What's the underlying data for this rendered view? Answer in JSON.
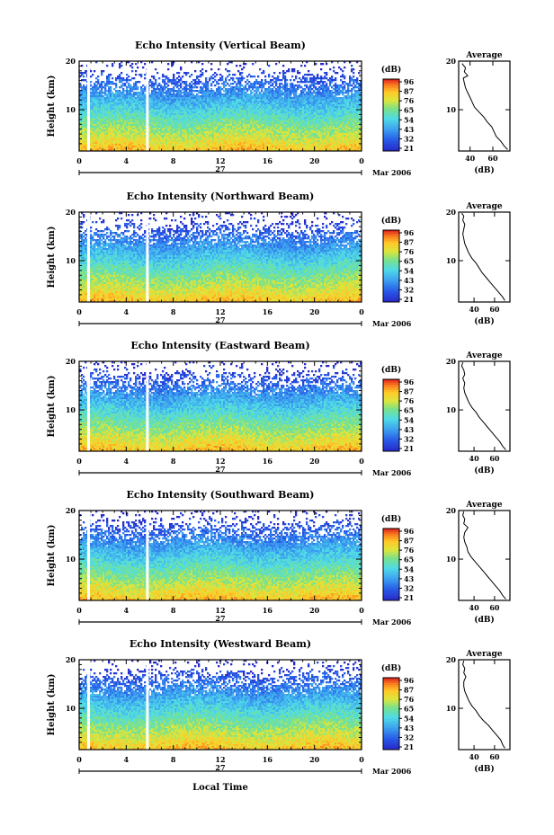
{
  "figure": {
    "x_axis_label": "Local Time",
    "date_label": "Mar 2006",
    "day_label": "27"
  },
  "chart_data": [
    {
      "type": "heatmap",
      "title": "Echo Intensity (Vertical Beam)",
      "ylabel": "Height (km)",
      "xlabel": "Local Time",
      "x_ticks": [
        "0",
        "4",
        "8",
        "12",
        "16",
        "20",
        "0"
      ],
      "y_ticks": [
        "20",
        "10"
      ],
      "xlim": [
        0,
        24
      ],
      "ylim": [
        1.5,
        20
      ],
      "data_gaps_hours": [
        0.8,
        5.8
      ],
      "colorbar": {
        "unit": "(dB)",
        "ticks": [
          "96",
          "87",
          "76",
          "65",
          "54",
          "43",
          "32",
          "21"
        ]
      },
      "average_profile": {
        "title": "Average",
        "xlabel": "(dB)",
        "x_ticks": [
          "40",
          "60"
        ],
        "y_ticks": [
          "20",
          "10"
        ],
        "xlim": [
          30,
          75
        ],
        "values": [
          [
            73,
            1.8
          ],
          [
            70,
            2.5
          ],
          [
            67,
            3.5
          ],
          [
            63,
            4.5
          ],
          [
            61,
            5.5
          ],
          [
            59,
            6.5
          ],
          [
            55,
            7.5
          ],
          [
            52,
            8.5
          ],
          [
            48,
            9.5
          ],
          [
            44,
            10.5
          ],
          [
            42,
            11.5
          ],
          [
            40,
            12.5
          ],
          [
            38,
            13.5
          ],
          [
            36,
            14.5
          ],
          [
            35,
            15.5
          ],
          [
            34,
            16.5
          ],
          [
            38,
            17.0
          ],
          [
            35,
            17.8
          ],
          [
            36,
            18.6
          ],
          [
            33,
            19.5
          ]
        ]
      }
    },
    {
      "type": "heatmap",
      "title": "Echo Intensity (Northward Beam)",
      "ylabel": "Height (km)",
      "xlabel": "Local Time",
      "x_ticks": [
        "0",
        "4",
        "8",
        "12",
        "16",
        "20",
        "0"
      ],
      "y_ticks": [
        "20",
        "10"
      ],
      "xlim": [
        0,
        24
      ],
      "ylim": [
        1.5,
        20
      ],
      "data_gaps_hours": [
        0.8,
        5.8
      ],
      "colorbar": {
        "unit": "(dB)",
        "ticks": [
          "96",
          "87",
          "76",
          "65",
          "54",
          "43",
          "32",
          "21"
        ]
      },
      "average_profile": {
        "title": "Average",
        "xlabel": "(dB)",
        "x_ticks": [
          "40",
          "60"
        ],
        "y_ticks": [
          "20",
          "10"
        ],
        "xlim": [
          25,
          75
        ],
        "values": [
          [
            70,
            1.8
          ],
          [
            68,
            2.5
          ],
          [
            64,
            3.5
          ],
          [
            60,
            4.5
          ],
          [
            56,
            5.5
          ],
          [
            52,
            6.5
          ],
          [
            48,
            7.5
          ],
          [
            45,
            8.5
          ],
          [
            42,
            9.5
          ],
          [
            38,
            10.5
          ],
          [
            35,
            11.5
          ],
          [
            33,
            12.5
          ],
          [
            31,
            13.5
          ],
          [
            30,
            14.5
          ],
          [
            29,
            15.5
          ],
          [
            30,
            16.5
          ],
          [
            31,
            17.5
          ],
          [
            29,
            18.3
          ],
          [
            30,
            19.2
          ],
          [
            28,
            19.8
          ]
        ]
      }
    },
    {
      "type": "heatmap",
      "title": "Echo Intensity (Eastward Beam)",
      "ylabel": "Height (km)",
      "xlabel": "Local Time",
      "x_ticks": [
        "0",
        "4",
        "8",
        "12",
        "16",
        "20",
        "0"
      ],
      "y_ticks": [
        "20",
        "10"
      ],
      "xlim": [
        0,
        24
      ],
      "ylim": [
        1.5,
        20
      ],
      "data_gaps_hours": [
        0.8,
        5.8
      ],
      "colorbar": {
        "unit": "(dB)",
        "ticks": [
          "96",
          "87",
          "76",
          "65",
          "54",
          "43",
          "32",
          "21"
        ]
      },
      "average_profile": {
        "title": "Average",
        "xlabel": "(dB)",
        "x_ticks": [
          "40",
          "60"
        ],
        "y_ticks": [
          "20",
          "10"
        ],
        "xlim": [
          25,
          75
        ],
        "values": [
          [
            71,
            1.8
          ],
          [
            68,
            2.5
          ],
          [
            65,
            3.5
          ],
          [
            61,
            4.5
          ],
          [
            57,
            5.5
          ],
          [
            53,
            6.5
          ],
          [
            49,
            7.5
          ],
          [
            45,
            8.5
          ],
          [
            42,
            9.5
          ],
          [
            38,
            10.5
          ],
          [
            35,
            11.5
          ],
          [
            33,
            12.5
          ],
          [
            31,
            13.5
          ],
          [
            30,
            14.5
          ],
          [
            31,
            15.5
          ],
          [
            29,
            16.5
          ],
          [
            31,
            17.3
          ],
          [
            30,
            18.2
          ],
          [
            28,
            19.0
          ],
          [
            29,
            19.8
          ]
        ]
      }
    },
    {
      "type": "heatmap",
      "title": "Echo Intensity (Southward Beam)",
      "ylabel": "Height (km)",
      "xlabel": "Local Time",
      "x_ticks": [
        "0",
        "4",
        "8",
        "12",
        "16",
        "20",
        "0"
      ],
      "y_ticks": [
        "20",
        "10"
      ],
      "xlim": [
        0,
        24
      ],
      "ylim": [
        1.5,
        20
      ],
      "data_gaps_hours": [
        0.8,
        5.8
      ],
      "colorbar": {
        "unit": "(dB)",
        "ticks": [
          "96",
          "87",
          "76",
          "65",
          "54",
          "43",
          "32",
          "21"
        ]
      },
      "average_profile": {
        "title": "Average",
        "xlabel": "(dB)",
        "x_ticks": [
          "40",
          "60"
        ],
        "y_ticks": [
          "20",
          "10"
        ],
        "xlim": [
          25,
          75
        ],
        "values": [
          [
            71,
            1.8
          ],
          [
            68,
            2.5
          ],
          [
            65,
            3.5
          ],
          [
            61,
            4.5
          ],
          [
            57,
            5.5
          ],
          [
            53,
            6.5
          ],
          [
            49,
            7.5
          ],
          [
            45,
            8.5
          ],
          [
            41,
            9.5
          ],
          [
            37,
            10.5
          ],
          [
            34,
            11.5
          ],
          [
            33,
            12.5
          ],
          [
            31,
            13.5
          ],
          [
            30,
            14.5
          ],
          [
            31,
            15.5
          ],
          [
            34,
            16.5
          ],
          [
            30,
            17.3
          ],
          [
            31,
            18.2
          ],
          [
            29,
            19.0
          ],
          [
            30,
            19.8
          ]
        ]
      }
    },
    {
      "type": "heatmap",
      "title": "Echo Intensity (Westward Beam)",
      "ylabel": "Height (km)",
      "xlabel": "Local Time",
      "x_ticks": [
        "0",
        "4",
        "8",
        "12",
        "16",
        "20",
        "0"
      ],
      "y_ticks": [
        "20",
        "10"
      ],
      "xlim": [
        0,
        24
      ],
      "ylim": [
        1.5,
        20
      ],
      "data_gaps_hours": [
        0.8,
        5.8
      ],
      "colorbar": {
        "unit": "(dB)",
        "ticks": [
          "96",
          "87",
          "76",
          "65",
          "54",
          "43",
          "32",
          "21"
        ]
      },
      "average_profile": {
        "title": "Average",
        "xlabel": "(dB)",
        "x_ticks": [
          "40",
          "60"
        ],
        "y_ticks": [
          "20",
          "10"
        ],
        "xlim": [
          25,
          75
        ],
        "values": [
          [
            70,
            1.8
          ],
          [
            68,
            2.5
          ],
          [
            66,
            3.5
          ],
          [
            62,
            4.5
          ],
          [
            58,
            5.5
          ],
          [
            54,
            6.5
          ],
          [
            49,
            7.5
          ],
          [
            45,
            8.5
          ],
          [
            42,
            9.5
          ],
          [
            38,
            10.5
          ],
          [
            35,
            11.5
          ],
          [
            33,
            12.5
          ],
          [
            31,
            13.5
          ],
          [
            30,
            14.5
          ],
          [
            30,
            15.5
          ],
          [
            32,
            16.5
          ],
          [
            30,
            17.3
          ],
          [
            31,
            18.2
          ],
          [
            29,
            19.0
          ],
          [
            30,
            19.8
          ]
        ]
      }
    }
  ]
}
